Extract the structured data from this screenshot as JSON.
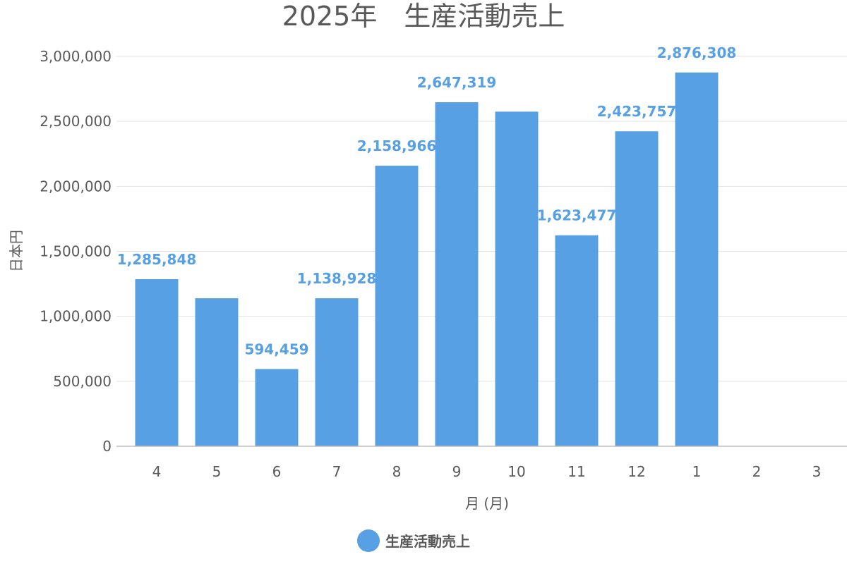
{
  "chart_data": {
    "type": "bar",
    "title": "2025年　生産活動売上",
    "xlabel": "月 (月)",
    "ylabel": "日本円",
    "categories": [
      "4",
      "5",
      "6",
      "7",
      "8",
      "9",
      "10",
      "11",
      "12",
      "1",
      "2",
      "3"
    ],
    "series": [
      {
        "name": "生産活動売上",
        "color": "#57a0e4",
        "values": [
          1285848,
          1138928,
          594459,
          1138928,
          2158966,
          2647319,
          2575000,
          1623477,
          2423757,
          2876308,
          null,
          null
        ],
        "data_labels": [
          "1,285,848",
          "",
          "594,459",
          "1,138,928",
          "2,158,966",
          "2,647,319",
          "",
          "1,623,477",
          "2,423,757",
          "2,876,308",
          "",
          ""
        ]
      }
    ],
    "ylim": [
      0,
      3000000
    ],
    "yticks": [
      0,
      500000,
      1000000,
      1500000,
      2000000,
      2500000,
      3000000
    ],
    "ytick_labels": [
      "0",
      "500,000",
      "1,000,000",
      "1,500,000",
      "2,000,000",
      "2,500,000",
      "3,000,000"
    ],
    "grid": true,
    "legend": "bottom"
  }
}
